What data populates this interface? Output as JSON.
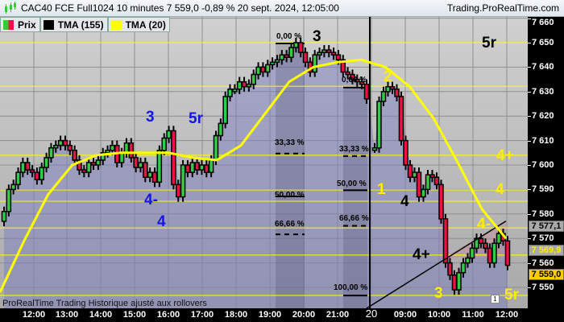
{
  "header": {
    "title": "CAC40 FCE Full1024 10 minutes 7 559,0 -0,89 % 20 sept. 2024, 12:05:00",
    "site": "Trading.ProRealTime.com"
  },
  "legend": [
    {
      "label": "Prix",
      "colors": [
        "#33cc33",
        "#ee1144"
      ]
    },
    {
      "label": "TMA (155)",
      "color": "#000000"
    },
    {
      "label": "TMA (20)",
      "color": "#ffff00"
    }
  ],
  "footer": "ProRealTime Trading Historique ajusté aux rollovers",
  "badge": "1",
  "price_boxes": [
    {
      "value": "7 577,1",
      "bg": "#a8a8a8",
      "fg": "#000000"
    },
    {
      "value": "7 569,9",
      "bg": "#a8a8a8",
      "fg": "#ffee00"
    },
    {
      "value": "7 559,0",
      "bg": "#ffcc00",
      "fg": "#000000"
    }
  ],
  "wave_labels": {
    "b3": "3",
    "b5r": "5r",
    "b4m": "4-",
    "b4": "4",
    "k3": "3",
    "k5r": "5r",
    "k4": "4",
    "k4p": "4+",
    "y2": "2",
    "y1": "1",
    "y4p": "4+",
    "y4": "4",
    "y4m": "4-",
    "y3": "3",
    "y5r": "5r"
  },
  "fib_labels": {
    "a0": "0,00 %",
    "a33": "33,33 %",
    "a50": "50,00 %",
    "a66": "66,66 %",
    "b0": "0,00 %",
    "b33": "33,33 %",
    "b50": "50,00 %",
    "b66": "66,66 %",
    "b100": "100,00 %"
  },
  "chart_data": {
    "type": "candlestick",
    "title": "CAC40 FCE Full1024 10 minutes",
    "ylim": [
      7542,
      7662
    ],
    "yticks": [
      7550,
      7560,
      7570,
      7580,
      7590,
      7600,
      7610,
      7620,
      7630,
      7640,
      7650,
      7660
    ],
    "ytick_labels": [
      "7 550",
      "7 560",
      "7 570",
      "7 580",
      "7 590",
      "7 600",
      "7 610",
      "7 620",
      "7 630",
      "7 640",
      "7 650",
      "7 660"
    ],
    "xtick_labels": [
      "12:00",
      "13:00",
      "14:00",
      "15:00",
      "16:00",
      "17:00",
      "18:00",
      "19:00",
      "20:00",
      "21:00",
      "20",
      "09:00",
      "10:00",
      "11:00",
      "12:00"
    ],
    "grid": true,
    "session1_closes": [
      7581,
      7590,
      7592,
      7597,
      7601,
      7598,
      7597,
      7594,
      7599,
      7603,
      7607,
      7608,
      7610,
      7608,
      7606,
      7602,
      7598,
      7597,
      7601,
      7600,
      7602,
      7605,
      7606,
      7608,
      7601,
      7605,
      7609,
      7603,
      7599,
      7601,
      7595,
      7597,
      7593,
      7606,
      7611,
      7614,
      7592,
      7587,
      7600,
      7597,
      7601,
      7598,
      7600,
      7597,
      7602,
      7612,
      7617,
      7628,
      7631,
      7631,
      7634,
      7632,
      7633,
      7637,
      7640,
      7638,
      7641,
      7642,
      7643,
      7645,
      7644,
      7648,
      7650,
      7646,
      7642,
      7638,
      7645,
      7646,
      7647,
      7646,
      7645,
      7643,
      7638,
      7637,
      7635,
      7634,
      7633,
      7627
    ],
    "session2_closes": [
      7607,
      7626,
      7630,
      7632,
      7631,
      7628,
      7610,
      7600,
      7595,
      7597,
      7587,
      7590,
      7596,
      7595,
      7592,
      7578,
      7560,
      7555,
      7549,
      7556,
      7560,
      7562,
      7566,
      7570,
      7568,
      7566,
      7560,
      7568,
      7572,
      7569,
      7559
    ],
    "tma20": [
      7548,
      7569,
      7588,
      7600,
      7604,
      7605,
      7605,
      7605,
      7603,
      7602,
      7608,
      7621,
      7634,
      7640,
      7642,
      7643,
      7640,
      7632,
      7619,
      7601,
      7582,
      7570
    ],
    "horizontal_levels": [
      7650,
      7632.2,
      7604,
      7589.8,
      7585.2,
      7574.3,
      7563.2,
      7546.7
    ],
    "trendline": [
      7535,
      7577.1
    ],
    "last_price": 7559.0
  }
}
